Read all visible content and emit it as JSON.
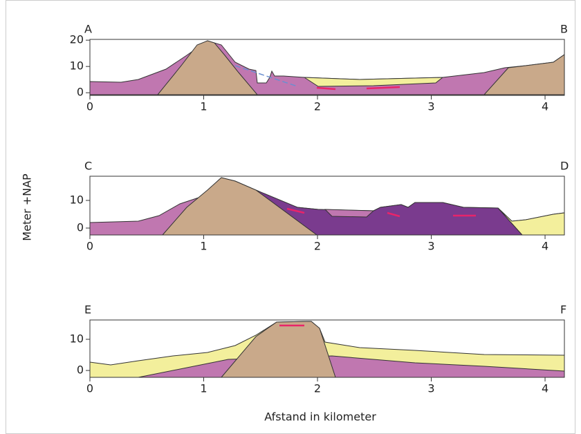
{
  "chart_data": [
    {
      "type": "cross-section",
      "label_left": "A",
      "label_right": "B",
      "xlim": [
        0,
        4.17
      ],
      "xticks": [
        0,
        1,
        2,
        3,
        4
      ],
      "ylim": [
        -1,
        20.3
      ],
      "yticks": [
        0,
        10,
        20
      ]
    },
    {
      "type": "cross-section",
      "label_left": "C",
      "label_right": "D",
      "ylabel": "Meter +NAP",
      "xlim": [
        0,
        4.17
      ],
      "xticks": [
        0,
        1,
        2,
        3,
        4
      ],
      "ylim": [
        -2.5,
        18.75
      ],
      "yticks": [
        0,
        10
      ]
    },
    {
      "type": "cross-section",
      "label_left": "E",
      "label_right": "F",
      "xlabel": "Afstand in kilometer",
      "xlim": [
        0,
        4.17
      ],
      "xticks": [
        0,
        1,
        2,
        3,
        4
      ],
      "ylim": [
        -2.2,
        16.2
      ],
      "yticks": [
        0,
        10
      ]
    }
  ]
}
